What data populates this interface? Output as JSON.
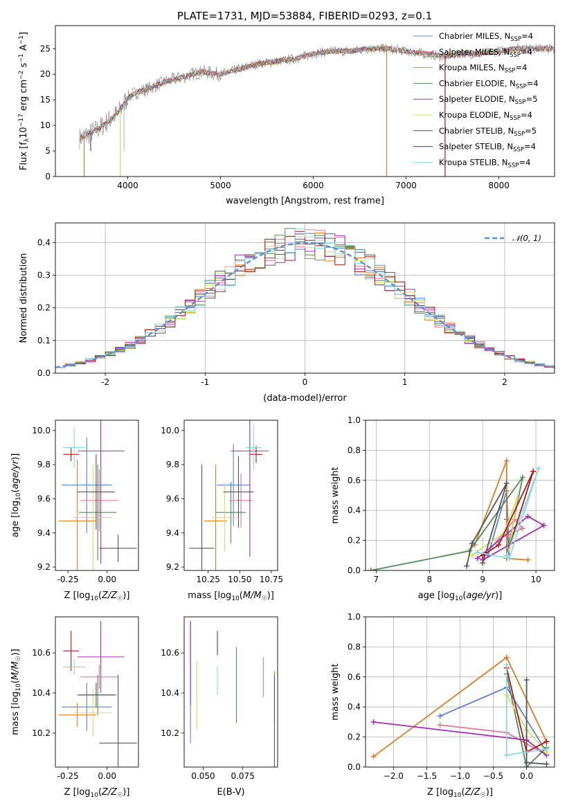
{
  "title": "PLATE=1731, MJD=53884, FIBERID=0293, z=0.1",
  "colors": {
    "Chabrier MILES": "#5b7fd6",
    "Salpeter MILES": "#e07b91",
    "Kroupa MILES": "#e07b21",
    "Chabrier ELODIE": "#4f8a55",
    "Salpeter ELODIE": "#9b30b0",
    "Kroupa ELODIE": "#d2e05a",
    "Chabrier STELIB": "#555555",
    "Salpeter STELIB": "#b01818",
    "Kroupa STELIB": "#8fd6e0",
    "gauss": "#5b8fd6"
  },
  "chart_data": [
    {
      "id": "spectrum",
      "type": "line",
      "title": "PLATE=1731, MJD=53884, FIBERID=0293, z=0.1",
      "xlabel": "wavelength [Angstrom, rest frame]",
      "ylabel": "Flux [f_λ 10^-17 erg cm^-2 s^-1 A^-1]",
      "xlim": [
        3220,
        8600
      ],
      "ylim": [
        0,
        29.5
      ],
      "xticks": [
        4000,
        5000,
        6000,
        7000,
        8000
      ],
      "yticks": [
        0,
        5,
        10,
        15,
        20,
        25
      ],
      "legend_position": "right",
      "legend": [
        {
          "name": "Chabrier MILES, N_SSP=4",
          "label_main": "Chabrier MILES, N",
          "label_sub": "SSP",
          "label_tail": "=4"
        },
        {
          "name": "Salpeter MILES, N_SSP=4",
          "label_main": "Salpeter MILES, N",
          "label_sub": "SSP",
          "label_tail": "=4"
        },
        {
          "name": "Kroupa MILES, N_SSP=4",
          "label_main": "Kroupa MILES, N",
          "label_sub": "SSP",
          "label_tail": "=4"
        },
        {
          "name": "Chabrier ELODIE, N_SSP=4",
          "label_main": "Chabrier ELODIE, N",
          "label_sub": "SSP",
          "label_tail": "=4"
        },
        {
          "name": "Salpeter ELODIE, N_SSP=5",
          "label_main": "Salpeter ELODIE, N",
          "label_sub": "SSP",
          "label_tail": "=5"
        },
        {
          "name": "Kroupa ELODIE, N_SSP=4",
          "label_main": "Kroupa ELODIE, N",
          "label_sub": "SSP",
          "label_tail": "=4"
        },
        {
          "name": "Chabrier STELIB, N_SSP=5",
          "label_main": "Chabrier STELIB, N",
          "label_sub": "SSP",
          "label_tail": "=5"
        },
        {
          "name": "Salpeter STELIB, N_SSP=4",
          "label_main": "Salpeter STELIB, N",
          "label_sub": "SSP",
          "label_tail": "=4"
        },
        {
          "name": "Kroupa STELIB, N_SSP=4",
          "label_main": "Kroupa STELIB, N",
          "label_sub": "SSP",
          "label_tail": "=4"
        }
      ],
      "continuum": {
        "x": [
          3480,
          3600,
          3700,
          3800,
          3900,
          4000,
          4100,
          4200,
          4400,
          4600,
          4800,
          5000,
          5200,
          5400,
          5600,
          5800,
          6000,
          6200,
          6400,
          6600,
          6800,
          7000,
          7200,
          7400,
          7600,
          7800,
          8000,
          8200,
          8600
        ],
        "y": [
          7.5,
          8.5,
          9.5,
          11,
          12.5,
          15.5,
          16.5,
          17,
          18.5,
          19.5,
          20.5,
          20,
          21,
          22,
          22.5,
          23,
          24,
          24.5,
          24.5,
          25,
          25,
          24.5,
          24,
          23.5,
          24,
          24,
          24.5,
          25,
          25
        ]
      },
      "dips": [
        {
          "series": "Kroupa MILES",
          "x": 3530,
          "y": 0
        },
        {
          "series": "Kroupa ELODIE",
          "x": 3920,
          "y": 0
        },
        {
          "series": "Kroupa MILES",
          "x": 6790,
          "y": 0
        },
        {
          "series": "Salpeter STELIB",
          "x": 7420,
          "y": 0
        },
        {
          "series": "Chabrier STELIB",
          "x": 3600,
          "y": 5
        },
        {
          "series": "Kroupa STELIB",
          "x": 3960,
          "y": 5
        }
      ]
    },
    {
      "id": "residuals",
      "type": "histogram",
      "xlabel": "(data-model)/error",
      "ylabel": "Normed distribution",
      "xlim": [
        -2.5,
        2.5
      ],
      "ylim": [
        0,
        0.46
      ],
      "xticks": [
        -2,
        -1,
        0,
        1,
        2
      ],
      "yticks": [
        0.0,
        0.1,
        0.2,
        0.3,
        0.4
      ],
      "grid": true,
      "legend_position": "top-right",
      "legend": [
        {
          "name": "N(0,1)",
          "label_main": "𝒩(0, 1)"
        }
      ],
      "bin_width": 0.1,
      "bin_start": -2.5
    },
    {
      "id": "age-vs-Z",
      "type": "errorbar",
      "xlabel": "Z [log10(Z/Z☉)]",
      "ylabel": "age [log10(age/yr)]",
      "xlim": [
        -0.33,
        0.2
      ],
      "ylim": [
        9.18,
        10.06
      ],
      "xticks": [
        -0.25,
        0.0
      ],
      "yticks": [
        9.2,
        9.4,
        9.6,
        9.8,
        10.0
      ],
      "points": [
        {
          "series": "Chabrier MILES",
          "x": -0.13,
          "y": 9.68,
          "xerr": 0.16,
          "yerr": 0.28
        },
        {
          "series": "Salpeter MILES",
          "x": -0.05,
          "y": 9.59,
          "xerr": 0.12,
          "yerr": 0.18
        },
        {
          "series": "Kroupa MILES",
          "x": -0.19,
          "y": 9.47,
          "xerr": 0.12,
          "yerr": 0.36
        },
        {
          "series": "Chabrier ELODIE",
          "x": -0.06,
          "y": 9.52,
          "xerr": 0.12,
          "yerr": 0.28
        },
        {
          "series": "Salpeter ELODIE",
          "x": -0.04,
          "y": 9.88,
          "xerr": 0.15,
          "yerr": 0.66
        },
        {
          "series": "Kroupa ELODIE",
          "x": -0.09,
          "y": 9.49,
          "xerr": 0.12,
          "yerr": 0.31
        },
        {
          "series": "Chabrier STELIB",
          "x": -0.07,
          "y": 9.64,
          "xerr": 0.12,
          "yerr": 0.22
        },
        {
          "series": "Chabrier STELIB",
          "x": 0.07,
          "y": 9.31,
          "xerr": 0.12,
          "yerr": 0.08
        },
        {
          "series": "Salpeter STELIB",
          "x": -0.23,
          "y": 9.86,
          "xerr": 0.05,
          "yerr": 0.04
        },
        {
          "series": "Kroupa STELIB",
          "x": -0.21,
          "y": 9.9,
          "xerr": 0.07,
          "yerr": 0.12
        }
      ]
    },
    {
      "id": "age-vs-mass",
      "type": "errorbar",
      "xlabel": "mass [log10(M/M☉)]",
      "ylabel": "",
      "xlim": [
        10.06,
        10.8
      ],
      "ylim": [
        9.18,
        10.06
      ],
      "xticks": [
        10.25,
        10.5,
        10.75
      ],
      "yticks": [
        9.2,
        9.4,
        9.6,
        9.8,
        10.0
      ],
      "points": [
        {
          "series": "Chabrier MILES",
          "x": 10.45,
          "y": 9.68,
          "xerr": 0.13,
          "yerr": 0.24
        },
        {
          "series": "Salpeter MILES",
          "x": 10.51,
          "y": 9.59,
          "xerr": 0.09,
          "yerr": 0.16
        },
        {
          "series": "Kroupa MILES",
          "x": 10.31,
          "y": 9.47,
          "xerr": 0.09,
          "yerr": 0.33
        },
        {
          "series": "Chabrier ELODIE",
          "x": 10.43,
          "y": 9.52,
          "xerr": 0.12,
          "yerr": 0.18
        },
        {
          "series": "Salpeter ELODIE",
          "x": 10.58,
          "y": 9.88,
          "xerr": 0.15,
          "yerr": 0.62
        },
        {
          "series": "Kroupa ELODIE",
          "x": 10.38,
          "y": 9.49,
          "xerr": 0.1,
          "yerr": 0.2
        },
        {
          "series": "Chabrier STELIB",
          "x": 10.49,
          "y": 9.64,
          "xerr": 0.12,
          "yerr": 0.21
        },
        {
          "series": "Chabrier STELIB",
          "x": 10.2,
          "y": 9.31,
          "xerr": 0.1,
          "yerr": 0.49
        },
        {
          "series": "Salpeter STELIB",
          "x": 10.63,
          "y": 9.86,
          "xerr": 0.05,
          "yerr": 0.05
        },
        {
          "series": "Kroupa STELIB",
          "x": 10.61,
          "y": 9.9,
          "xerr": 0.06,
          "yerr": 0.13
        }
      ]
    },
    {
      "id": "weight-vs-age",
      "type": "line",
      "xlabel": "age [log10(age/yr)]",
      "ylabel": "mass weight",
      "xlim": [
        6.8,
        10.35
      ],
      "ylim": [
        0,
        1
      ],
      "xticks": [
        7,
        8,
        9,
        10
      ],
      "yticks": [
        0.0,
        0.2,
        0.4,
        0.6,
        0.8,
        1.0
      ],
      "grid": true,
      "series": [
        {
          "name": "Chabrier MILES",
          "x": [
            9.1,
            9.45,
            9.5,
            9.45
          ],
          "y": [
            0.1,
            0.53,
            0.08,
            0.34
          ]
        },
        {
          "name": "Salpeter MILES",
          "x": [
            9.0,
            9.6,
            9.75,
            9.45
          ],
          "y": [
            0.08,
            0.34,
            0.28,
            0.23
          ]
        },
        {
          "name": "Kroupa MILES",
          "x": [
            8.85,
            9.45,
            9.45,
            9.85
          ],
          "y": [
            0.17,
            0.73,
            0.08,
            0.07
          ]
        },
        {
          "name": "Chabrier ELODIE",
          "x": [
            6.9,
            8.75,
            9.75,
            9.45
          ],
          "y": [
            0.0,
            0.13,
            0.62,
            0.1
          ]
        },
        {
          "name": "Salpeter ELODIE",
          "x": [
            8.9,
            9.85,
            10.15,
            9.0
          ],
          "y": [
            0.08,
            0.36,
            0.3,
            0.07
          ]
        },
        {
          "name": "Kroupa ELODIE",
          "x": [
            8.8,
            9.4,
            9.65,
            9.5
          ],
          "y": [
            0.1,
            0.25,
            0.48,
            0.15
          ]
        },
        {
          "name": "Chabrier STELIB",
          "x": [
            8.7,
            8.8,
            9.45,
            9.0
          ],
          "y": [
            0.03,
            0.18,
            0.58,
            0.05
          ]
        },
        {
          "name": "Salpeter STELIB",
          "x": [
            9.0,
            9.3,
            9.95,
            9.45
          ],
          "y": [
            0.1,
            0.17,
            0.66,
            0.1
          ]
        },
        {
          "name": "Kroupa STELIB",
          "x": [
            8.9,
            9.5,
            10.05,
            9.45
          ],
          "y": [
            0.12,
            0.08,
            0.68,
            0.1
          ]
        }
      ]
    },
    {
      "id": "mass-vs-Z",
      "type": "errorbar",
      "xlabel": "Z [log10(Z/Z☉)]",
      "ylabel": "mass [log10(M/M☉)]",
      "xlim": [
        -0.33,
        0.2
      ],
      "ylim": [
        10.03,
        10.78
      ],
      "xticks": [
        -0.25,
        0.0
      ],
      "yticks": [
        10.2,
        10.4,
        10.6
      ],
      "points": [
        {
          "series": "Chabrier MILES",
          "x": -0.13,
          "y": 10.33,
          "xerr": 0.16,
          "yerr": 0.12
        },
        {
          "series": "Salpeter MILES",
          "x": -0.05,
          "y": 10.48,
          "xerr": 0.12,
          "yerr": 0.06
        },
        {
          "series": "Kroupa MILES",
          "x": -0.19,
          "y": 10.29,
          "xerr": 0.12,
          "yerr": 0.06
        },
        {
          "series": "Chabrier ELODIE",
          "x": -0.06,
          "y": 10.39,
          "xerr": 0.12,
          "yerr": 0.1
        },
        {
          "series": "Salpeter ELODIE",
          "x": -0.04,
          "y": 10.58,
          "xerr": 0.15,
          "yerr": 0.18
        },
        {
          "series": "Kroupa ELODIE",
          "x": -0.09,
          "y": 10.3,
          "xerr": 0.12,
          "yerr": 0.12
        },
        {
          "series": "Chabrier STELIB",
          "x": -0.07,
          "y": 10.39,
          "xerr": 0.12,
          "yerr": 0.06
        },
        {
          "series": "Chabrier STELIB",
          "x": 0.07,
          "y": 10.15,
          "xerr": 0.12,
          "yerr": 0.34
        },
        {
          "series": "Salpeter STELIB",
          "x": -0.23,
          "y": 10.61,
          "xerr": 0.05,
          "yerr": 0.1
        },
        {
          "series": "Kroupa STELIB",
          "x": -0.21,
          "y": 10.53,
          "xerr": 0.07,
          "yerr": 0.04
        }
      ]
    },
    {
      "id": "mass-vs-EBV",
      "type": "errorbar",
      "xlabel": "E(B-V)",
      "ylabel": "",
      "xlim": [
        0.038,
        0.097
      ],
      "ylim": [
        10.03,
        10.78
      ],
      "xticks": [
        0.05,
        0.075
      ],
      "yticks": [
        10.2,
        10.4,
        10.6
      ],
      "points": [
        {
          "series": "Chabrier MILES",
          "x": 0.042,
          "y": 10.45,
          "xerr": 0,
          "yerr": 0.3
        },
        {
          "series": "Salpeter MILES",
          "x": 0.088,
          "y": 10.48,
          "xerr": 0,
          "yerr": 0.1
        },
        {
          "series": "Kroupa MILES",
          "x": 0.095,
          "y": 10.38,
          "xerr": 0,
          "yerr": 0.13
        },
        {
          "series": "Chabrier ELODIE",
          "x": 0.071,
          "y": 10.44,
          "xerr": 0,
          "yerr": 0.19
        },
        {
          "series": "Salpeter ELODIE",
          "x": 0.042,
          "y": 10.55,
          "xerr": 0,
          "yerr": 0.21
        },
        {
          "series": "Kroupa ELODIE",
          "x": 0.046,
          "y": 10.39,
          "xerr": 0,
          "yerr": 0.17
        },
        {
          "series": "Chabrier STELIB",
          "x": 0.095,
          "y": 10.25,
          "xerr": 0,
          "yerr": 0.24
        },
        {
          "series": "Salpeter STELIB",
          "x": 0.059,
          "y": 10.65,
          "xerr": 0,
          "yerr": 0.06
        },
        {
          "series": "Kroupa STELIB",
          "x": 0.059,
          "y": 10.46,
          "xerr": 0,
          "yerr": 0.07
        }
      ]
    },
    {
      "id": "weight-vs-Z",
      "type": "line",
      "xlabel": "Z [log10(Z/Z☉)]",
      "ylabel": "mass weight",
      "xlim": [
        -2.42,
        0.42
      ],
      "ylim": [
        0,
        1
      ],
      "xticks": [
        -2.0,
        -1.5,
        -1.0,
        -0.5,
        0.0
      ],
      "yticks": [
        0.0,
        0.2,
        0.4,
        0.6,
        0.8,
        1.0
      ],
      "grid": true,
      "series": [
        {
          "name": "Chabrier MILES",
          "x": [
            -1.3,
            -0.3,
            0.3
          ],
          "y": [
            0.34,
            0.53,
            0.1
          ]
        },
        {
          "name": "Salpeter MILES",
          "x": [
            -1.3,
            -0.3,
            0.3
          ],
          "y": [
            0.28,
            0.23,
            0.08
          ]
        },
        {
          "name": "Kroupa MILES",
          "x": [
            -2.3,
            -0.3,
            0.3
          ],
          "y": [
            0.07,
            0.73,
            0.17
          ]
        },
        {
          "name": "Chabrier ELODIE",
          "x": [
            -0.3,
            0.0,
            0.3
          ],
          "y": [
            0.62,
            0.0,
            0.13
          ]
        },
        {
          "name": "Salpeter ELODIE",
          "x": [
            -2.3,
            0.0,
            0.3
          ],
          "y": [
            0.3,
            0.18,
            0.08
          ]
        },
        {
          "name": "Kroupa ELODIE",
          "x": [
            -0.3,
            0.0,
            0.3
          ],
          "y": [
            0.48,
            0.25,
            0.1
          ]
        },
        {
          "name": "Chabrier STELIB",
          "x": [
            0.0,
            0.0,
            0.3
          ],
          "y": [
            0.58,
            0.03,
            0.02
          ]
        },
        {
          "name": "Salpeter STELIB",
          "x": [
            -0.3,
            0.0,
            0.3
          ],
          "y": [
            0.66,
            0.1,
            0.17
          ]
        },
        {
          "name": "Kroupa STELIB",
          "x": [
            -0.3,
            -0.3,
            0.3
          ],
          "y": [
            0.68,
            0.08,
            0.12
          ]
        }
      ]
    }
  ]
}
